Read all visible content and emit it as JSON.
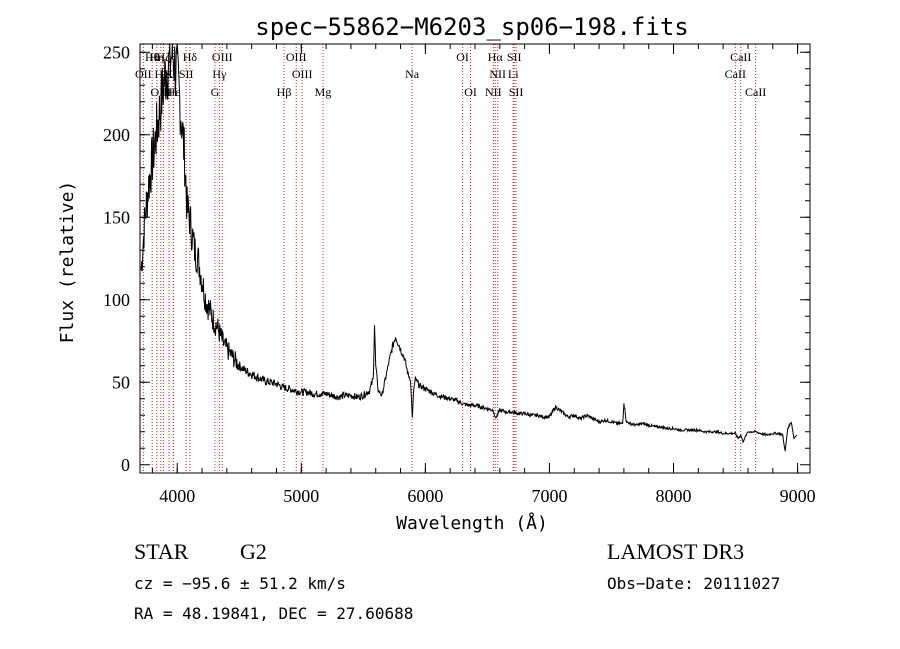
{
  "chart_data": {
    "type": "line",
    "title": "spec−55862−M6203_sp06−198.fits",
    "xlabel": "Wavelength (Å)",
    "ylabel": "Flux (relative)",
    "xlim": [
      3700,
      9100
    ],
    "ylim": [
      -5,
      255
    ],
    "x_ticks": [
      4000,
      5000,
      6000,
      7000,
      8000,
      9000
    ],
    "x_tick_labels": [
      "4000",
      "5000",
      "6000",
      "7000",
      "8000",
      "9000"
    ],
    "y_ticks": [
      0,
      50,
      100,
      150,
      200,
      250
    ],
    "y_tick_labels": [
      "0",
      "50",
      "100",
      "150",
      "200",
      "250"
    ],
    "grid": false,
    "series": [
      {
        "name": "flux",
        "x": [
          3710,
          3740,
          3770,
          3800,
          3830,
          3860,
          3880,
          3900,
          3920,
          3940,
          3960,
          3980,
          4000,
          4020,
          4040,
          4060,
          4080,
          4100,
          4120,
          4140,
          4160,
          4180,
          4200,
          4230,
          4260,
          4290,
          4320,
          4350,
          4380,
          4420,
          4460,
          4500,
          4550,
          4600,
          4650,
          4700,
          4750,
          4800,
          4850,
          4900,
          4950,
          5000,
          5050,
          5100,
          5150,
          5200,
          5250,
          5300,
          5350,
          5400,
          5450,
          5500,
          5550,
          5580,
          5590,
          5600,
          5620,
          5650,
          5700,
          5730,
          5760,
          5780,
          5800,
          5830,
          5860,
          5880,
          5895,
          5905,
          5920,
          5950,
          6000,
          6050,
          6100,
          6150,
          6200,
          6250,
          6300,
          6350,
          6400,
          6450,
          6500,
          6550,
          6563,
          6600,
          6650,
          6700,
          6750,
          6800,
          6850,
          6900,
          6950,
          7000,
          7050,
          7100,
          7150,
          7200,
          7250,
          7300,
          7350,
          7400,
          7450,
          7500,
          7550,
          7590,
          7600,
          7620,
          7650,
          7700,
          7750,
          7800,
          7850,
          7900,
          7950,
          8000,
          8050,
          8100,
          8150,
          8200,
          8250,
          8300,
          8350,
          8400,
          8450,
          8498,
          8520,
          8542,
          8560,
          8600,
          8662,
          8700,
          8750,
          8800,
          8850,
          8880,
          8900,
          8920,
          8950,
          8970,
          8990
        ],
        "y": [
          118,
          150,
          170,
          185,
          200,
          215,
          225,
          235,
          240,
          244,
          250,
          243,
          236,
          222,
          205,
          185,
          155,
          150,
          140,
          130,
          127,
          120,
          112,
          100,
          94,
          88,
          84,
          78,
          72,
          68,
          64,
          60,
          57,
          55,
          53,
          51,
          50,
          49,
          47,
          46,
          45,
          44,
          44,
          43,
          43,
          43,
          42,
          41,
          42,
          42,
          41,
          42,
          45,
          52,
          86,
          60,
          45,
          42,
          60,
          70,
          78,
          74,
          70,
          65,
          55,
          52,
          28,
          45,
          52,
          48,
          46,
          44,
          42,
          41,
          40,
          39,
          37,
          36,
          36,
          35,
          34,
          33,
          28,
          33,
          32,
          32,
          31,
          31,
          30,
          30,
          29,
          29,
          35,
          32,
          29,
          30,
          28,
          30,
          28,
          26,
          27,
          26,
          25,
          25,
          38,
          26,
          25,
          24,
          25,
          24,
          23,
          23,
          22,
          22,
          21,
          21,
          21,
          21,
          20,
          20,
          20,
          19,
          19,
          19,
          16,
          18,
          14,
          20,
          20,
          19,
          18,
          19,
          19,
          18,
          8,
          22,
          26,
          16,
          18
        ]
      }
    ],
    "spectral_lines": [
      {
        "label": "Hθ",
        "x": 3798,
        "row": 0
      },
      {
        "label": "Hη",
        "x": 3835,
        "row": 0
      },
      {
        "label": "Hζ",
        "x": 3889,
        "row": 0
      },
      {
        "label": "Hδ",
        "x": 4102,
        "row": 0
      },
      {
        "label": "OIII",
        "x": 4363,
        "row": 0
      },
      {
        "label": "OIII",
        "x": 4959,
        "row": 0
      },
      {
        "label": "OI",
        "x": 6300,
        "row": 0
      },
      {
        "label": "Hα",
        "x": 6563,
        "row": 0
      },
      {
        "label": "SII",
        "x": 6716,
        "row": 0
      },
      {
        "label": "CaII",
        "x": 8542,
        "row": 0
      },
      {
        "label": "OII",
        "x": 3727,
        "row": 1
      },
      {
        "label": "HeI",
        "x": 3889,
        "row": 1
      },
      {
        "label": "K",
        "x": 3934,
        "row": 1
      },
      {
        "label": "SII",
        "x": 4072,
        "row": 1
      },
      {
        "label": "Hγ",
        "x": 4340,
        "row": 1
      },
      {
        "label": "OIII",
        "x": 5007,
        "row": 1
      },
      {
        "label": "Na",
        "x": 5893,
        "row": 1
      },
      {
        "label": "NII",
        "x": 6583,
        "row": 1
      },
      {
        "label": "Li",
        "x": 6708,
        "row": 1
      },
      {
        "label": "CaII",
        "x": 8498,
        "row": 1
      },
      {
        "label": "OIII",
        "x": 3868,
        "row": 2
      },
      {
        "label": "Hε",
        "x": 3970,
        "row": 2
      },
      {
        "label": "H",
        "x": 3968,
        "row": 2
      },
      {
        "label": "G",
        "x": 4304,
        "row": 2
      },
      {
        "label": "Hβ",
        "x": 4861,
        "row": 2
      },
      {
        "label": "Mg",
        "x": 5175,
        "row": 2
      },
      {
        "label": "OI",
        "x": 6364,
        "row": 2
      },
      {
        "label": "NII",
        "x": 6548,
        "row": 2
      },
      {
        "label": "SII",
        "x": 6731,
        "row": 2
      },
      {
        "label": "CaII",
        "x": 8662,
        "row": 2
      }
    ]
  },
  "info": {
    "object_type": "STAR",
    "subclass": "G2",
    "survey": "LAMOST DR3",
    "redshift": "cz = −95.6 ± 51.2 km/s",
    "obs_date": "Obs−Date: 20111027",
    "coords": "RA =  48.19841, DEC =  27.60688"
  }
}
